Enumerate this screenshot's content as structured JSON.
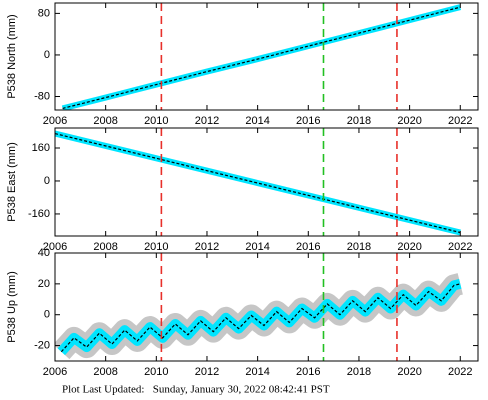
{
  "chart_data": [
    {
      "type": "line",
      "ylabel": "P538 North (mm)",
      "x": [
        2006.3,
        2008,
        2010,
        2012,
        2014,
        2016,
        2018,
        2020,
        2022
      ],
      "series": [
        {
          "color": "#00e5ff",
          "values": [
            -103,
            -82,
            -57,
            -32,
            -8,
            17,
            42,
            67,
            92
          ]
        }
      ],
      "fit_color": "#000000",
      "xlim": [
        2006,
        2022.7
      ],
      "xticks": [
        2006,
        2008,
        2010,
        2012,
        2014,
        2016,
        2018,
        2020,
        2022
      ],
      "ylim": [
        -106,
        100
      ],
      "yticks": [
        -80,
        0,
        80
      ],
      "vlines": [
        {
          "x": 2010.2,
          "color": "#e8302a"
        },
        {
          "x": 2016.6,
          "color": "#22c022"
        },
        {
          "x": 2019.5,
          "color": "#e8302a"
        }
      ]
    },
    {
      "type": "line",
      "ylabel": "P538 East (mm)",
      "x": [
        2006,
        2014,
        2022
      ],
      "series": [
        {
          "color": "#00e5ff",
          "values": [
            230,
            -10,
            -250
          ]
        }
      ],
      "fit_color": "#000000",
      "xlim": [
        2006,
        2022.7
      ],
      "xticks": [
        2006,
        2008,
        2010,
        2012,
        2014,
        2016,
        2018,
        2020,
        2022
      ],
      "ylim": [
        -267,
        257
      ],
      "yticks": [
        -160,
        0,
        160
      ],
      "vlines": [
        {
          "x": 2010.2,
          "color": "#e8302a"
        },
        {
          "x": 2016.6,
          "color": "#22c022"
        },
        {
          "x": 2019.5,
          "color": "#e8302a"
        }
      ]
    },
    {
      "type": "line",
      "ylabel": "P538 Up (mm)",
      "x": [
        2006.25,
        2006.75,
        2007.25,
        2007.75,
        2008.25,
        2008.75,
        2009.25,
        2009.75,
        2010.25,
        2010.75,
        2011.25,
        2011.75,
        2012.25,
        2012.75,
        2013.25,
        2013.75,
        2014.25,
        2014.75,
        2015.25,
        2015.75,
        2016.25,
        2016.75,
        2017.25,
        2017.75,
        2018.25,
        2018.75,
        2019.25,
        2019.75,
        2020.25,
        2020.75,
        2021.25,
        2021.75,
        2022.0
      ],
      "series": [
        {
          "color": "#00e5ff",
          "values": [
            -24,
            -15,
            -21,
            -12,
            -19,
            -10,
            -17,
            -8,
            -15,
            -6,
            -13,
            -4,
            -11,
            -2,
            -9,
            -0.5,
            -7,
            2,
            -5,
            4,
            -2,
            7,
            0,
            9,
            2,
            11,
            4,
            13,
            6,
            15,
            9,
            19,
            20
          ]
        }
      ],
      "fit_color": "#000000",
      "error_color": "#b8b8b8",
      "xlim": [
        2006,
        2022.7
      ],
      "xticks": [
        2006,
        2008,
        2010,
        2012,
        2014,
        2016,
        2018,
        2020,
        2022
      ],
      "ylim": [
        -30,
        40
      ],
      "yticks": [
        -20,
        0,
        20,
        40
      ],
      "vlines": [
        {
          "x": 2010.2,
          "color": "#e8302a"
        },
        {
          "x": 2016.6,
          "color": "#22c022"
        },
        {
          "x": 2019.5,
          "color": "#e8302a"
        }
      ]
    }
  ],
  "footer": "Plot Last Updated:   Sunday, January 30, 2022 08:42:41 PST"
}
